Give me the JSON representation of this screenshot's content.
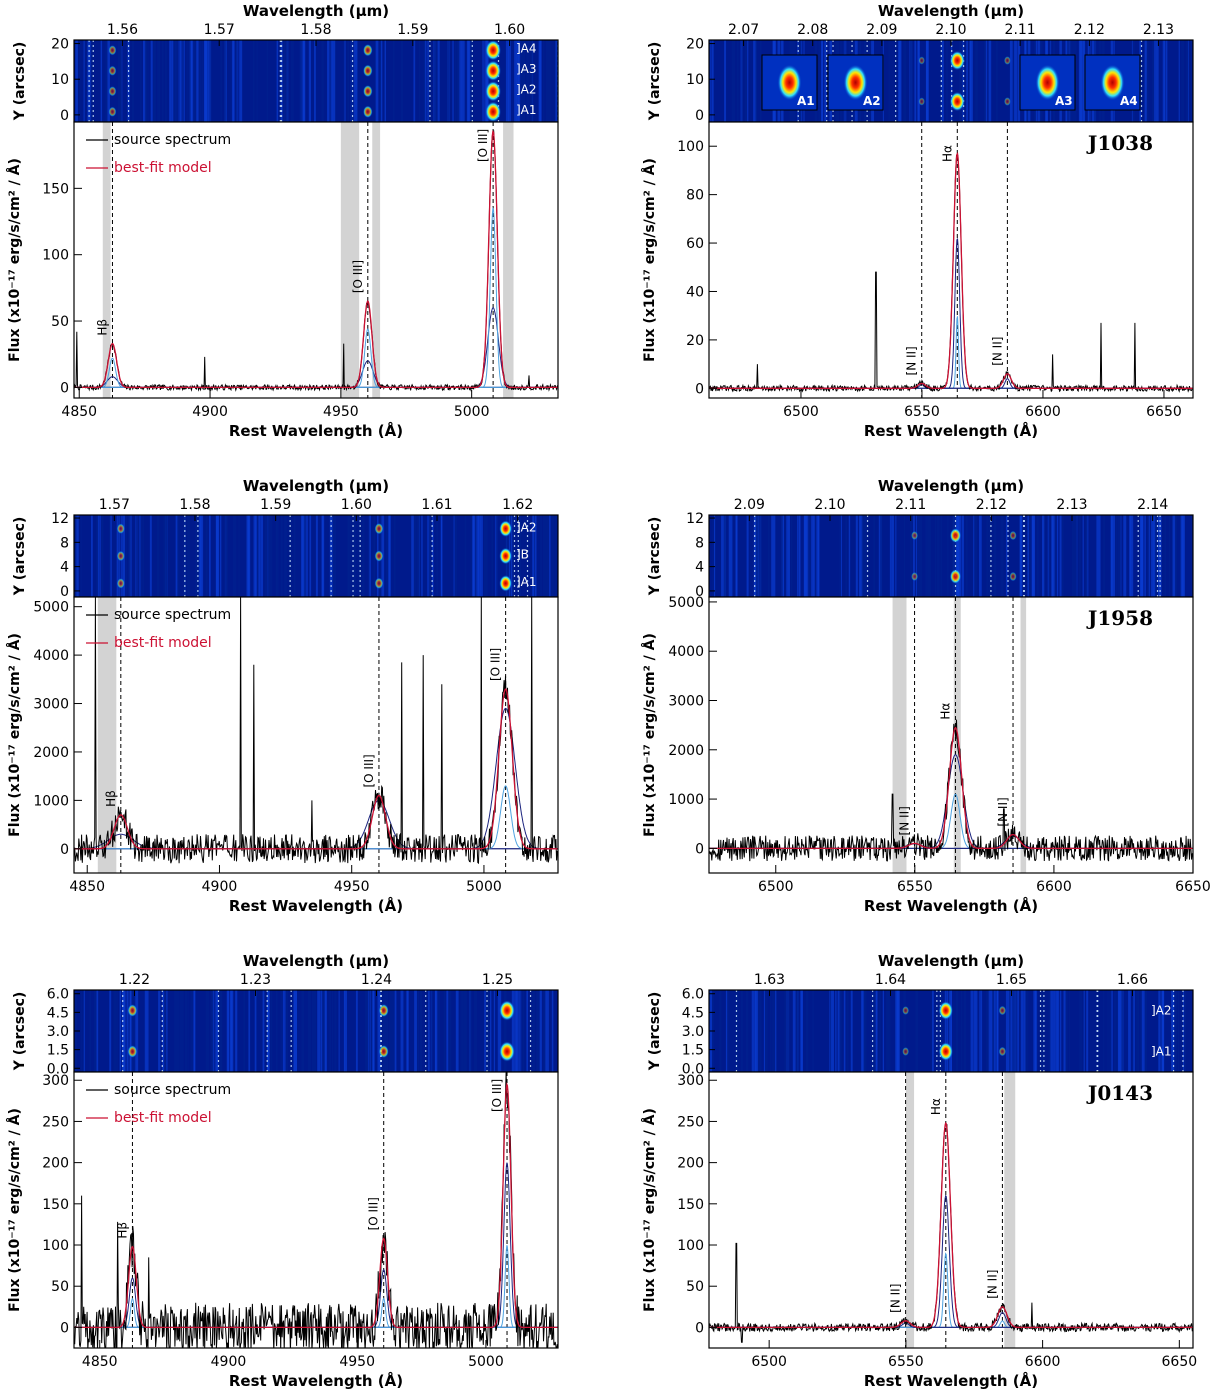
{
  "figure": {
    "colors": {
      "spectrum": "#000000",
      "model": "#cc1133",
      "component_dark": "#1a237e",
      "component_light": "#4fa3e0",
      "masked": "#d3d3d3",
      "image_bg": "#001a8c"
    },
    "common_labels": {
      "top_axis": "Wavelength (μm)",
      "bottom_axis": "Rest Wavelength (Å)",
      "y_axis_image": "Y (arcsec)",
      "y_axis_flux": "Flux (x10⁻¹⁷ erg/s/cm² / Å)"
    }
  },
  "chart_data": [
    {
      "id": "p1",
      "type": "line",
      "object": "",
      "line_set": "Hβ-[O III]",
      "legend": [
        "source spectrum",
        "best-fit model"
      ],
      "top_ticks": [
        1.56,
        1.57,
        1.58,
        1.59,
        1.6
      ],
      "top_tick_labels": [
        "1.56",
        "1.57",
        "1.58",
        "1.59",
        "1.60"
      ],
      "xlim": [
        4848,
        5033
      ],
      "ylim": [
        -8,
        200
      ],
      "xticks": [
        4850,
        4900,
        4950,
        5000
      ],
      "yticks": [
        0,
        50,
        100,
        150
      ],
      "image": {
        "yticks": [
          0,
          10,
          20
        ],
        "ylim": [
          -2,
          21
        ],
        "labels": [
          "A4",
          "A3",
          "A2",
          "A1"
        ]
      },
      "masks": [
        [
          4859,
          4862
        ],
        [
          4950,
          4957
        ],
        [
          4962,
          4965
        ],
        [
          5012,
          5016
        ]
      ],
      "lines": [
        {
          "label": "Hβ",
          "x": 4862.7
        },
        {
          "label": "[O III]",
          "x": 4960.3
        },
        {
          "label": "[O III]",
          "x": 5008.2
        }
      ],
      "spikes": [
        {
          "x": 4849,
          "y": 42
        },
        {
          "x": 4898,
          "y": 23
        },
        {
          "x": 4951,
          "y": 33
        },
        {
          "x": 5022,
          "y": 9
        }
      ],
      "peaks": [
        {
          "x": 4862.7,
          "model": 33,
          "components": [
            {
              "c": 0,
              "h": 8,
              "w": 2
            },
            {
              "c": 1,
              "h": 22,
              "w": 1.2
            }
          ]
        },
        {
          "x": 4960.3,
          "model": 65,
          "components": [
            {
              "c": 0,
              "h": 20,
              "w": 2
            },
            {
              "c": 1,
              "h": 44,
              "w": 1.2
            }
          ]
        },
        {
          "x": 5008.2,
          "model": 193,
          "components": [
            {
              "c": 0,
              "h": 60,
              "w": 2
            },
            {
              "c": 1,
              "h": 135,
              "w": 1.1
            }
          ]
        }
      ],
      "noise": 2,
      "model_width": 1.6
    },
    {
      "id": "p2",
      "type": "line",
      "object": "J1038",
      "line_set": "Hα-[N II]",
      "legend": [],
      "top_ticks": [
        2.07,
        2.08,
        2.09,
        2.1,
        2.11,
        2.12,
        2.13
      ],
      "top_tick_labels": [
        "2.07",
        "2.08",
        "2.09",
        "2.10",
        "2.11",
        "2.12",
        "2.13"
      ],
      "xlim": [
        6462,
        6662
      ],
      "ylim": [
        -4,
        110
      ],
      "xticks": [
        6500,
        6550,
        6600,
        6650
      ],
      "yticks": [
        0,
        20,
        40,
        60,
        80,
        100
      ],
      "image": {
        "yticks": [
          0,
          10,
          20
        ],
        "ylim": [
          -2,
          21
        ],
        "labels": [],
        "insets": [
          "A1",
          "A2",
          "A3",
          "A4"
        ]
      },
      "masks": [],
      "lines": [
        {
          "label": "[N II]",
          "x": 6549.9
        },
        {
          "label": "Hα",
          "x": 6564.6
        },
        {
          "label": "[N II]",
          "x": 6585.3
        }
      ],
      "spikes": [
        {
          "x": 6482,
          "y": 10
        },
        {
          "x": 6531,
          "y": 48
        },
        {
          "x": 6604,
          "y": 14
        },
        {
          "x": 6624,
          "y": 27
        },
        {
          "x": 6638,
          "y": 27
        }
      ],
      "peaks": [
        {
          "x": 6564.6,
          "model": 97,
          "components": [
            {
              "c": 0,
              "h": 62,
              "w": 1.0
            },
            {
              "c": 1,
              "h": 30,
              "w": 0.5
            }
          ]
        },
        {
          "x": 6585.3,
          "model": 6,
          "components": [
            {
              "c": 0,
              "h": 4,
              "w": 1.0
            }
          ]
        },
        {
          "x": 6549.9,
          "model": 2,
          "components": [
            {
              "c": 0,
              "h": 1.5,
              "w": 1.0
            }
          ]
        }
      ],
      "noise": 1.2,
      "model_width": 1.6
    },
    {
      "id": "p3",
      "type": "line",
      "object": "",
      "line_set": "Hβ-[O III]",
      "legend": [
        "source spectrum",
        "best-fit model"
      ],
      "top_ticks": [
        1.57,
        1.58,
        1.59,
        1.6,
        1.61,
        1.62
      ],
      "top_tick_labels": [
        "1.57",
        "1.58",
        "1.59",
        "1.60",
        "1.61",
        "1.62"
      ],
      "xlim": [
        4845,
        5028
      ],
      "ylim": [
        -500,
        5200
      ],
      "xticks": [
        4850,
        4900,
        4950,
        5000
      ],
      "yticks": [
        0,
        1000,
        2000,
        3000,
        4000,
        5000
      ],
      "image": {
        "yticks": [
          0,
          4,
          8,
          12
        ],
        "ylim": [
          -1,
          12.5
        ],
        "labels": [
          "A2",
          "B",
          "A1"
        ]
      },
      "masks": [
        [
          4854,
          4861
        ]
      ],
      "lines": [
        {
          "label": "Hβ",
          "x": 4862.7
        },
        {
          "label": "[O III]",
          "x": 4960.3
        },
        {
          "label": "[O III]",
          "x": 5008.2
        }
      ],
      "spikes": [
        {
          "x": 4908,
          "y": 5200
        },
        {
          "x": 4913,
          "y": 3800
        },
        {
          "x": 4935,
          "y": 1000
        },
        {
          "x": 4969,
          "y": 3850
        },
        {
          "x": 4977,
          "y": 4000
        },
        {
          "x": 4984,
          "y": 3400
        },
        {
          "x": 4999,
          "y": 5200
        },
        {
          "x": 5018,
          "y": 5200
        },
        {
          "x": 4853,
          "y": 5200
        }
      ],
      "peaks": [
        {
          "x": 4862.7,
          "model": 700,
          "components": [
            {
              "c": 0,
              "h": 300,
              "w": 3
            }
          ]
        },
        {
          "x": 4960.3,
          "model": 1100,
          "components": [
            {
              "c": 0,
              "h": 1000,
              "w": 2.5
            }
          ]
        },
        {
          "x": 5008.2,
          "model": 3300,
          "components": [
            {
              "c": 0,
              "h": 2900,
              "w": 2.3
            },
            {
              "c": 1,
              "h": 1300,
              "w": 1.2
            }
          ]
        }
      ],
      "noise": 300,
      "model_width": 2.5
    },
    {
      "id": "p4",
      "type": "line",
      "object": "J1958",
      "line_set": "Hα-[N II]",
      "legend": [],
      "top_ticks": [
        2.09,
        2.1,
        2.11,
        2.12,
        2.13,
        2.14
      ],
      "top_tick_labels": [
        "2.09",
        "2.10",
        "2.11",
        "2.12",
        "2.13",
        "2.14"
      ],
      "xlim": [
        6476,
        6650
      ],
      "ylim": [
        -500,
        5100
      ],
      "xticks": [
        6500,
        6550,
        6600,
        6650
      ],
      "yticks": [
        0,
        1000,
        2000,
        3000,
        4000,
        5000
      ],
      "image": {
        "yticks": [
          0,
          4,
          8,
          12
        ],
        "ylim": [
          -1,
          12.5
        ],
        "labels": []
      },
      "masks": [
        [
          6542,
          6547
        ],
        [
          6564,
          6566.5
        ],
        [
          6588,
          6590
        ]
      ],
      "lines": [
        {
          "label": "[N II]",
          "x": 6549.9
        },
        {
          "label": "Hα",
          "x": 6564.6
        },
        {
          "label": "[N II]",
          "x": 6585.3
        }
      ],
      "spikes": [
        {
          "x": 6542,
          "y": 1100
        },
        {
          "x": 6582,
          "y": 800
        }
      ],
      "peaks": [
        {
          "x": 6564.6,
          "model": 2450,
          "components": [
            {
              "c": 0,
              "h": 1900,
              "w": 2.0
            },
            {
              "c": 1,
              "h": 1100,
              "w": 1.2
            }
          ]
        },
        {
          "x": 6585.3,
          "model": 280,
          "components": [
            {
              "c": 0,
              "h": 250,
              "w": 2.0
            }
          ]
        },
        {
          "x": 6549.9,
          "model": 100,
          "components": [
            {
              "c": 0,
              "h": 90,
              "w": 2.0
            }
          ]
        }
      ],
      "noise": 260,
      "model_width": 2.2
    },
    {
      "id": "p5",
      "type": "line",
      "object": "",
      "line_set": "Hβ-[O III]",
      "legend": [
        "source spectrum",
        "best-fit model"
      ],
      "top_ticks": [
        1.22,
        1.23,
        1.24,
        1.25
      ],
      "top_tick_labels": [
        "1.22",
        "1.23",
        "1.24",
        "1.25"
      ],
      "xlim": [
        4840,
        5028
      ],
      "ylim": [
        -25,
        310
      ],
      "xticks": [
        4850,
        4900,
        4950,
        5000
      ],
      "yticks": [
        0,
        50,
        100,
        150,
        200,
        250,
        300
      ],
      "image": {
        "yticks": [
          0.0,
          1.5,
          3.0,
          4.5,
          6.0
        ],
        "yticklabels": [
          "0.0",
          "1.5",
          "3.0",
          "4.5",
          "6.0"
        ],
        "ylim": [
          -0.3,
          6.3
        ],
        "labels": []
      },
      "masks": [],
      "lines": [
        {
          "label": "Hβ",
          "x": 4862.7
        },
        {
          "label": "[O III]",
          "x": 4960.3
        },
        {
          "label": "[O III]",
          "x": 5008.2
        }
      ],
      "spikes": [
        {
          "x": 4843,
          "y": 160
        },
        {
          "x": 4857,
          "y": 128
        },
        {
          "x": 4869,
          "y": 85
        }
      ],
      "peaks": [
        {
          "x": 4862.7,
          "model": 98,
          "components": [
            {
              "c": 0,
              "h": 60,
              "w": 1.3
            },
            {
              "c": 1,
              "h": 35,
              "w": 0.8
            }
          ]
        },
        {
          "x": 4960.3,
          "model": 108,
          "components": [
            {
              "c": 0,
              "h": 70,
              "w": 1.3
            },
            {
              "c": 1,
              "h": 35,
              "w": 0.8
            }
          ]
        },
        {
          "x": 5008.2,
          "model": 295,
          "components": [
            {
              "c": 0,
              "h": 200,
              "w": 1.3
            },
            {
              "c": 1,
              "h": 100,
              "w": 0.8
            }
          ]
        }
      ],
      "noise": 30,
      "model_width": 1.5
    },
    {
      "id": "p6",
      "type": "line",
      "object": "J0143",
      "line_set": "Hα-[N II]",
      "legend": [],
      "top_ticks": [
        1.63,
        1.64,
        1.65,
        1.66
      ],
      "top_tick_labels": [
        "1.63",
        "1.64",
        "1.65",
        "1.66"
      ],
      "xlim": [
        6478,
        6655
      ],
      "ylim": [
        -25,
        310
      ],
      "xticks": [
        6500,
        6550,
        6600,
        6650
      ],
      "yticks": [
        0,
        50,
        100,
        150,
        200,
        250,
        300
      ],
      "image": {
        "yticks": [
          0.0,
          1.5,
          3.0,
          4.5,
          6.0
        ],
        "yticklabels": [
          "0.0",
          "1.5",
          "3.0",
          "4.5",
          "6.0"
        ],
        "ylim": [
          -0.3,
          6.3
        ],
        "labels": [
          "A2",
          "A1"
        ]
      },
      "masks": [
        [
          6550,
          6553
        ],
        [
          6586,
          6590
        ]
      ],
      "lines": [
        {
          "label": "[N II]",
          "x": 6549.9
        },
        {
          "label": "Hα",
          "x": 6564.6
        },
        {
          "label": "[N II]",
          "x": 6585.3
        }
      ],
      "spikes": [
        {
          "x": 6488,
          "y": 102
        },
        {
          "x": 6490,
          "y": -18
        },
        {
          "x": 6596,
          "y": 30
        }
      ],
      "peaks": [
        {
          "x": 6564.6,
          "model": 248,
          "components": [
            {
              "c": 0,
              "h": 160,
              "w": 1.2
            },
            {
              "c": 1,
              "h": 90,
              "w": 0.7
            }
          ]
        },
        {
          "x": 6585.3,
          "model": 25,
          "components": [
            {
              "c": 0,
              "h": 18,
              "w": 1.2
            },
            {
              "c": 1,
              "h": 8,
              "w": 0.7
            }
          ]
        },
        {
          "x": 6549.9,
          "model": 8,
          "components": [
            {
              "c": 0,
              "h": 5,
              "w": 1.2
            }
          ]
        }
      ],
      "noise": 5,
      "model_width": 1.7
    }
  ]
}
